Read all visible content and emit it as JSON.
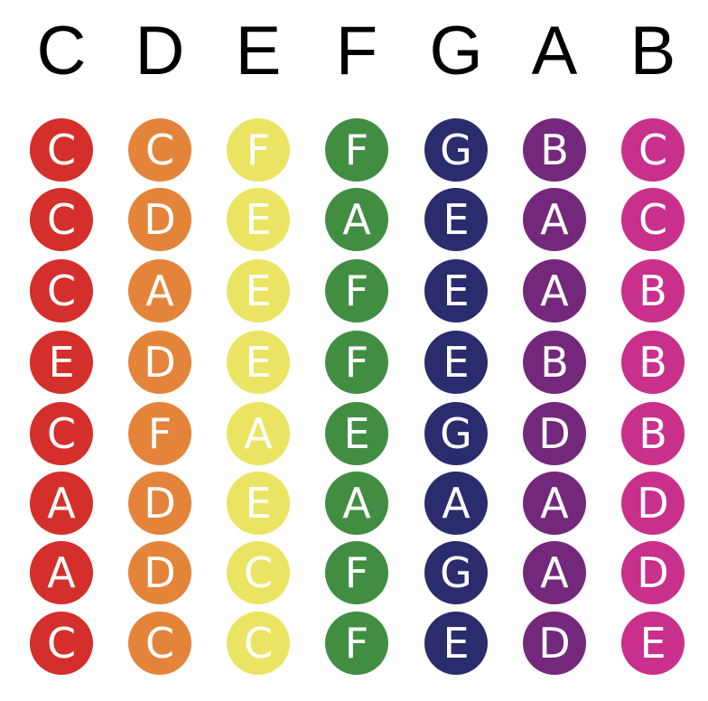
{
  "headers": [
    "C",
    "D",
    "E",
    "F",
    "G",
    "A",
    "B"
  ],
  "columns": [
    {
      "color": "#d42f2a",
      "notes": [
        "C",
        "C",
        "C",
        "E",
        "C",
        "A",
        "A",
        "C"
      ]
    },
    {
      "color": "#e4843a",
      "notes": [
        "C",
        "D",
        "A",
        "D",
        "F",
        "D",
        "D",
        "C"
      ]
    },
    {
      "color": "#ebe463",
      "notes": [
        "F",
        "E",
        "E",
        "E",
        "A",
        "E",
        "C",
        "C"
      ]
    },
    {
      "color": "#418e43",
      "notes": [
        "F",
        "A",
        "F",
        "F",
        "E",
        "A",
        "F",
        "F"
      ]
    },
    {
      "color": "#2b2c6e",
      "notes": [
        "G",
        "E",
        "E",
        "E",
        "G",
        "A",
        "G",
        "E"
      ]
    },
    {
      "color": "#74287c",
      "notes": [
        "B",
        "A",
        "A",
        "B",
        "D",
        "A",
        "A",
        "D"
      ]
    },
    {
      "color": "#c8308b",
      "notes": [
        "C",
        "C",
        "B",
        "B",
        "B",
        "D",
        "D",
        "E"
      ]
    }
  ]
}
